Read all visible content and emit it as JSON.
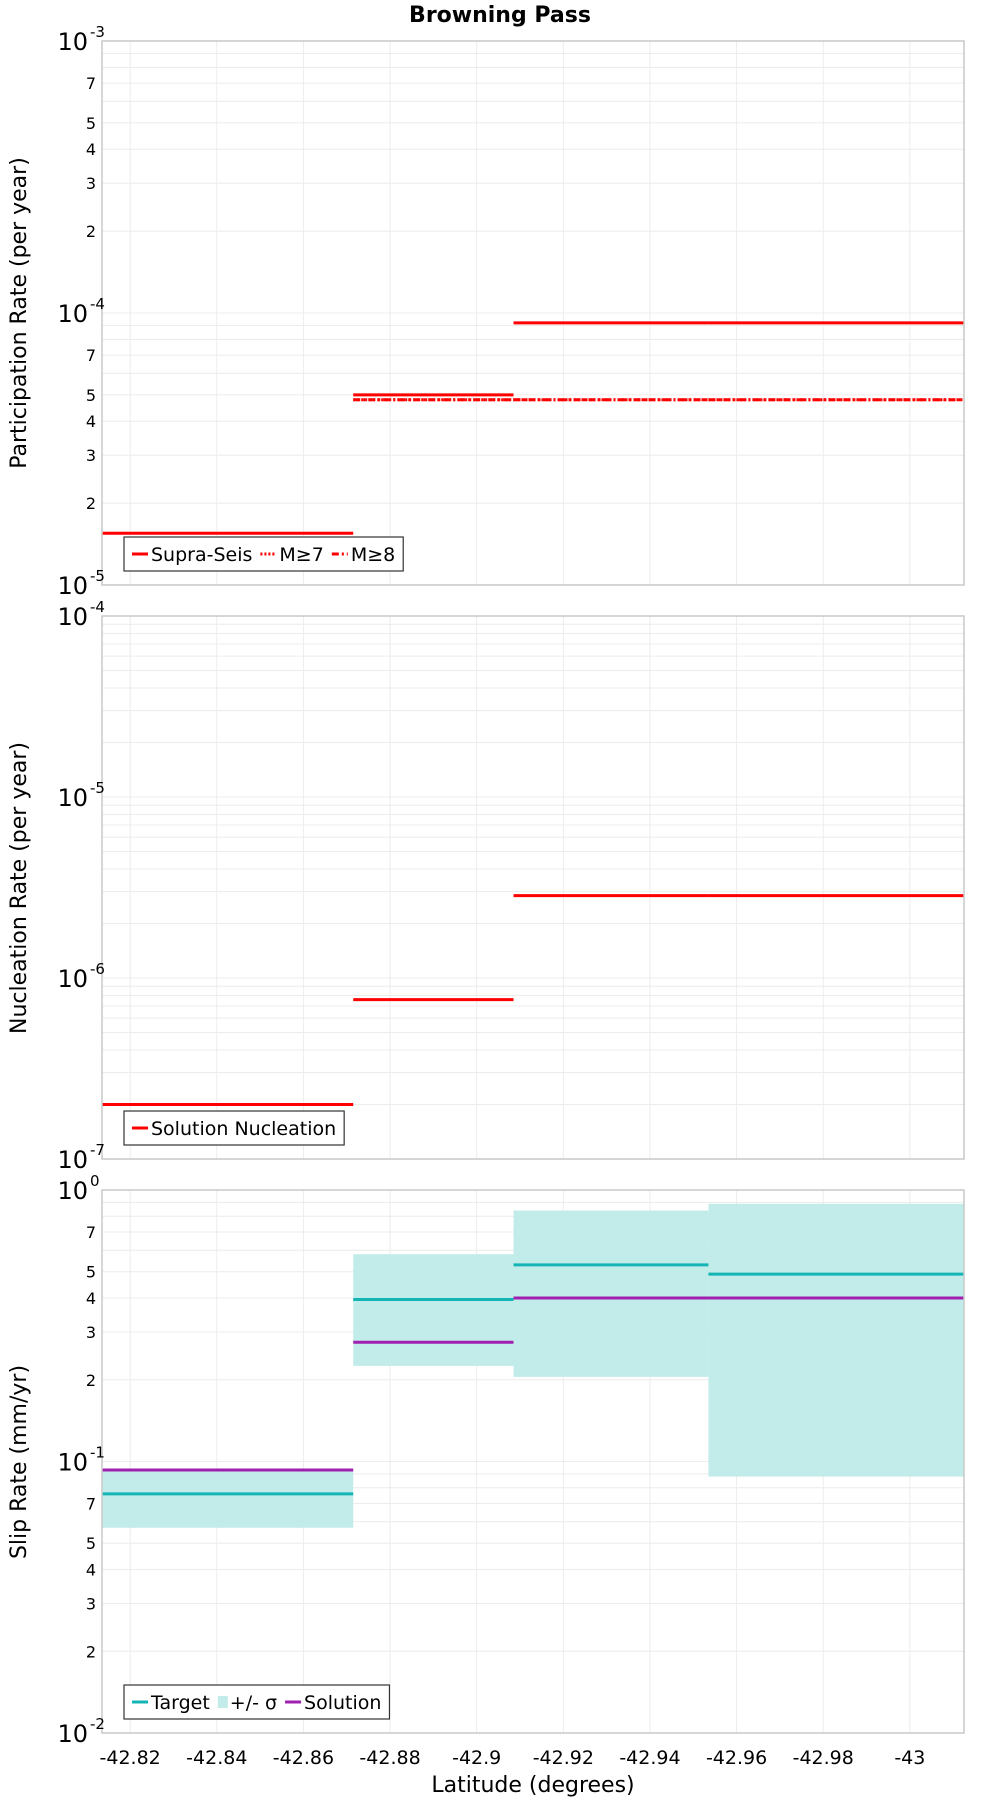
{
  "chart_data": [
    {
      "type": "line",
      "id": "participation",
      "title": "Browning Pass",
      "ylabel": "Participation Rate (per year)",
      "xlabel": "",
      "yscale": "log",
      "ylim": [
        1e-05,
        0.001
      ],
      "xlim": [
        -42.8135,
        -43.0125
      ],
      "y_major_ticks": [
        {
          "value": 0.001,
          "base": "10",
          "exp": "-3"
        },
        {
          "value": 0.0001,
          "base": "10",
          "exp": "-4"
        },
        {
          "value": 1e-05,
          "base": "10",
          "exp": "-5"
        }
      ],
      "y_minor_ticks": [
        {
          "value": 0.0007,
          "label": "7"
        },
        {
          "value": 0.0005,
          "label": "5"
        },
        {
          "value": 0.0004,
          "label": "4"
        },
        {
          "value": 0.0003,
          "label": "3"
        },
        {
          "value": 0.0002,
          "label": "2"
        },
        {
          "value": 7e-05,
          "label": "7"
        },
        {
          "value": 5e-05,
          "label": "5"
        },
        {
          "value": 4e-05,
          "label": "4"
        },
        {
          "value": 3e-05,
          "label": "3"
        },
        {
          "value": 2e-05,
          "label": "2"
        }
      ],
      "series": [
        {
          "name": "Supra-Seis",
          "style": "solid",
          "color": "#ff0000",
          "segments": [
            {
              "x0": -42.8135,
              "x1": -42.8715,
              "y": 1.55e-05
            },
            {
              "x0": -42.8715,
              "x1": -42.9085,
              "y": 5e-05
            },
            {
              "x0": -42.9085,
              "x1": -42.9535,
              "y": 9.2e-05
            },
            {
              "x0": -42.9535,
              "x1": -43.0125,
              "y": 9.2e-05
            }
          ]
        },
        {
          "name": "M≥7",
          "style": "dotted",
          "color": "#ff0000",
          "segments": [
            {
              "x0": -42.8715,
              "x1": -42.9085,
              "y": 4.8e-05
            },
            {
              "x0": -42.9085,
              "x1": -42.9535,
              "y": 4.8e-05
            },
            {
              "x0": -42.9535,
              "x1": -43.0125,
              "y": 4.8e-05
            }
          ]
        },
        {
          "name": "M≥8",
          "style": "dashdot",
          "color": "#ff0000",
          "segments": [
            {
              "x0": -42.8715,
              "x1": -42.9085,
              "y": 4.8e-05
            },
            {
              "x0": -42.9085,
              "x1": -42.9535,
              "y": 4.8e-05
            },
            {
              "x0": -42.9535,
              "x1": -43.0125,
              "y": 4.8e-05
            }
          ]
        }
      ],
      "legend": [
        "Supra-Seis",
        "M≥7",
        "M≥8"
      ],
      "legend_position": "bottom-left"
    },
    {
      "type": "line",
      "id": "nucleation",
      "ylabel": "Nucleation Rate (per year)",
      "xlabel": "",
      "yscale": "log",
      "ylim": [
        1e-07,
        0.0001
      ],
      "xlim": [
        -42.8135,
        -43.0125
      ],
      "y_major_ticks": [
        {
          "value": 0.0001,
          "base": "10",
          "exp": "-4"
        },
        {
          "value": 1e-05,
          "base": "10",
          "exp": "-5"
        },
        {
          "value": 1e-06,
          "base": "10",
          "exp": "-6"
        },
        {
          "value": 1e-07,
          "base": "10",
          "exp": "-7"
        }
      ],
      "y_minor_ticks": [],
      "series": [
        {
          "name": "Solution Nucleation",
          "style": "solid",
          "color": "#ff0000",
          "segments": [
            {
              "x0": -42.8135,
              "x1": -42.8715,
              "y": 2e-07
            },
            {
              "x0": -42.8715,
              "x1": -42.9085,
              "y": 7.6e-07
            },
            {
              "x0": -42.9085,
              "x1": -42.9535,
              "y": 2.85e-06
            },
            {
              "x0": -42.9535,
              "x1": -43.0125,
              "y": 2.85e-06
            }
          ]
        }
      ],
      "legend": [
        "Solution Nucleation"
      ],
      "legend_position": "bottom-left"
    },
    {
      "type": "line",
      "id": "sliprate",
      "ylabel": "Slip Rate (mm/yr)",
      "xlabel": "Latitude (degrees)",
      "yscale": "log",
      "ylim": [
        0.01,
        1
      ],
      "xlim": [
        -42.8135,
        -43.0125
      ],
      "x_ticks": [
        {
          "value": -42.82,
          "label": "-42.82"
        },
        {
          "value": -42.84,
          "label": "-42.84"
        },
        {
          "value": -42.86,
          "label": "-42.86"
        },
        {
          "value": -42.88,
          "label": "-42.88"
        },
        {
          "value": -42.9,
          "label": "-42.9"
        },
        {
          "value": -42.92,
          "label": "-42.92"
        },
        {
          "value": -42.94,
          "label": "-42.94"
        },
        {
          "value": -42.96,
          "label": "-42.96"
        },
        {
          "value": -42.98,
          "label": "-42.98"
        },
        {
          "value": -43.0,
          "label": "-43"
        }
      ],
      "y_major_ticks": [
        {
          "value": 1,
          "base": "10",
          "exp": "0"
        },
        {
          "value": 0.1,
          "base": "10",
          "exp": "-1"
        },
        {
          "value": 0.01,
          "base": "10",
          "exp": "-2"
        }
      ],
      "y_minor_ticks": [
        {
          "value": 0.7,
          "label": "7"
        },
        {
          "value": 0.5,
          "label": "5"
        },
        {
          "value": 0.4,
          "label": "4"
        },
        {
          "value": 0.3,
          "label": "3"
        },
        {
          "value": 0.2,
          "label": "2"
        },
        {
          "value": 0.07,
          "label": "7"
        },
        {
          "value": 0.05,
          "label": "5"
        },
        {
          "value": 0.04,
          "label": "4"
        },
        {
          "value": 0.03,
          "label": "3"
        },
        {
          "value": 0.02,
          "label": "2"
        }
      ],
      "bands": [
        {
          "name": "+/- σ",
          "color": "#c2ecea",
          "segments": [
            {
              "x0": -42.8135,
              "x1": -42.8715,
              "y0": 0.057,
              "y1": 0.093
            },
            {
              "x0": -42.8715,
              "x1": -42.9085,
              "y0": 0.225,
              "y1": 0.58
            },
            {
              "x0": -42.9085,
              "x1": -42.9535,
              "y0": 0.205,
              "y1": 0.84
            },
            {
              "x0": -42.9535,
              "x1": -43.0125,
              "y0": 0.088,
              "y1": 0.89
            }
          ]
        }
      ],
      "series": [
        {
          "name": "Target",
          "style": "solid",
          "color": "#14b4b4",
          "segments": [
            {
              "x0": -42.8135,
              "x1": -42.8715,
              "y": 0.076
            },
            {
              "x0": -42.8715,
              "x1": -42.9085,
              "y": 0.395
            },
            {
              "x0": -42.9085,
              "x1": -42.9535,
              "y": 0.53
            },
            {
              "x0": -42.9535,
              "x1": -43.0125,
              "y": 0.49
            }
          ]
        },
        {
          "name": "Solution",
          "style": "solid",
          "color": "#a020b0",
          "segments": [
            {
              "x0": -42.8135,
              "x1": -42.8715,
              "y": 0.093
            },
            {
              "x0": -42.8715,
              "x1": -42.9085,
              "y": 0.275
            },
            {
              "x0": -42.9085,
              "x1": -42.9535,
              "y": 0.4
            },
            {
              "x0": -42.9535,
              "x1": -43.0125,
              "y": 0.4
            }
          ]
        }
      ],
      "legend": [
        "Target",
        "+/- σ",
        "Solution"
      ],
      "legend_position": "bottom-left"
    }
  ],
  "colors": {
    "red": "#ff0000",
    "teal": "#14b4b4",
    "band": "#c2ecea",
    "purple": "#a020b0"
  }
}
